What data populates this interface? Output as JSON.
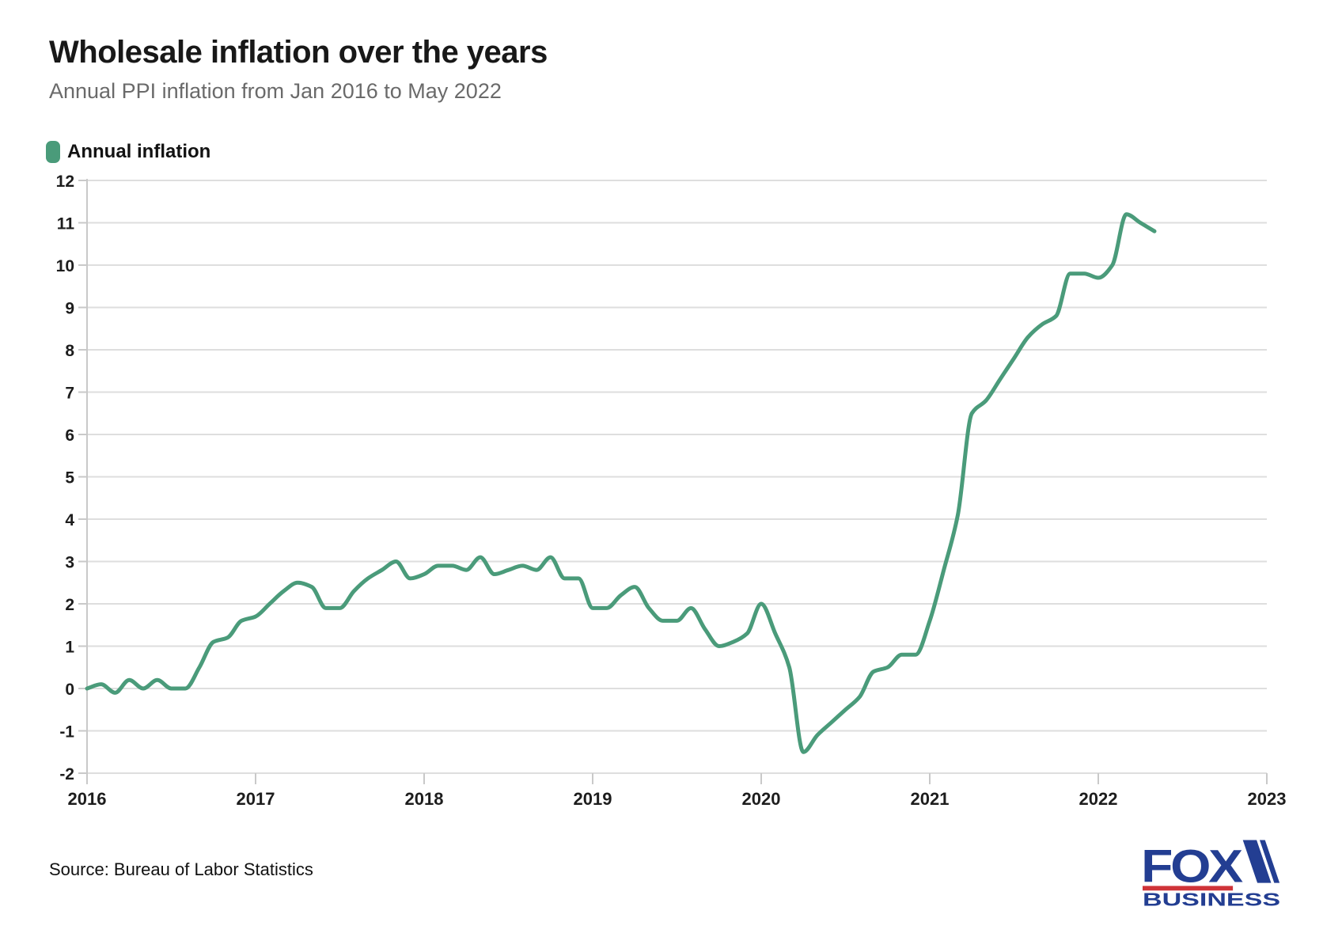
{
  "title": "Wholesale inflation over the years",
  "subtitle": "Annual PPI inflation from Jan 2016 to May 2022",
  "legend": {
    "label": "Annual inflation"
  },
  "source": "Source: Bureau of Labor Statistics",
  "logo": {
    "line1": "FOX",
    "line2": "BUSINESS",
    "navy": "#233e92",
    "red": "#cf3338"
  },
  "colors": {
    "line": "#4a9b7a",
    "grid": "#dedede",
    "axis": "#c9c9c9",
    "tick_label": "#1d1d1d",
    "background": "#ffffff"
  },
  "chart_data": {
    "type": "line",
    "title": "Wholesale inflation over the years",
    "subtitle": "Annual PPI inflation from Jan 2016 to May 2022",
    "x_unit": "month",
    "x_start": "2016-01",
    "x_end": "2022-05",
    "x_tick_labels": [
      "2016",
      "2017",
      "2018",
      "2019",
      "2020",
      "2021",
      "2022",
      "2023"
    ],
    "ylabel": "",
    "xlabel": "",
    "ylim": [
      -2,
      12
    ],
    "y_ticks": [
      -2,
      -1,
      0,
      1,
      2,
      3,
      4,
      5,
      6,
      7,
      8,
      9,
      10,
      11,
      12
    ],
    "grid": "horizontal",
    "legend_position": "top-left",
    "series": [
      {
        "name": "Annual inflation",
        "unit": "percent",
        "monthly_values_jan2016_to_may2022": [
          0.0,
          0.1,
          -0.1,
          0.2,
          0.0,
          0.2,
          0.0,
          0.0,
          0.5,
          1.1,
          1.2,
          1.6,
          1.7,
          2.0,
          2.3,
          2.5,
          2.4,
          1.9,
          1.9,
          2.3,
          2.6,
          2.8,
          3.0,
          2.6,
          2.7,
          2.9,
          2.9,
          2.8,
          3.1,
          2.7,
          2.8,
          2.9,
          2.8,
          3.1,
          2.6,
          2.6,
          1.9,
          1.9,
          2.2,
          2.4,
          1.9,
          1.6,
          1.6,
          1.9,
          1.4,
          1.0,
          1.1,
          1.3,
          2.0,
          1.3,
          0.5,
          -1.5,
          -1.1,
          -0.8,
          -0.5,
          -0.2,
          0.4,
          0.5,
          0.8,
          0.8,
          1.6,
          2.8,
          4.1,
          6.5,
          6.8,
          7.3,
          7.8,
          8.3,
          8.6,
          8.8,
          9.8,
          9.8,
          9.7,
          10.0,
          11.2,
          11.0,
          10.8
        ]
      }
    ]
  }
}
